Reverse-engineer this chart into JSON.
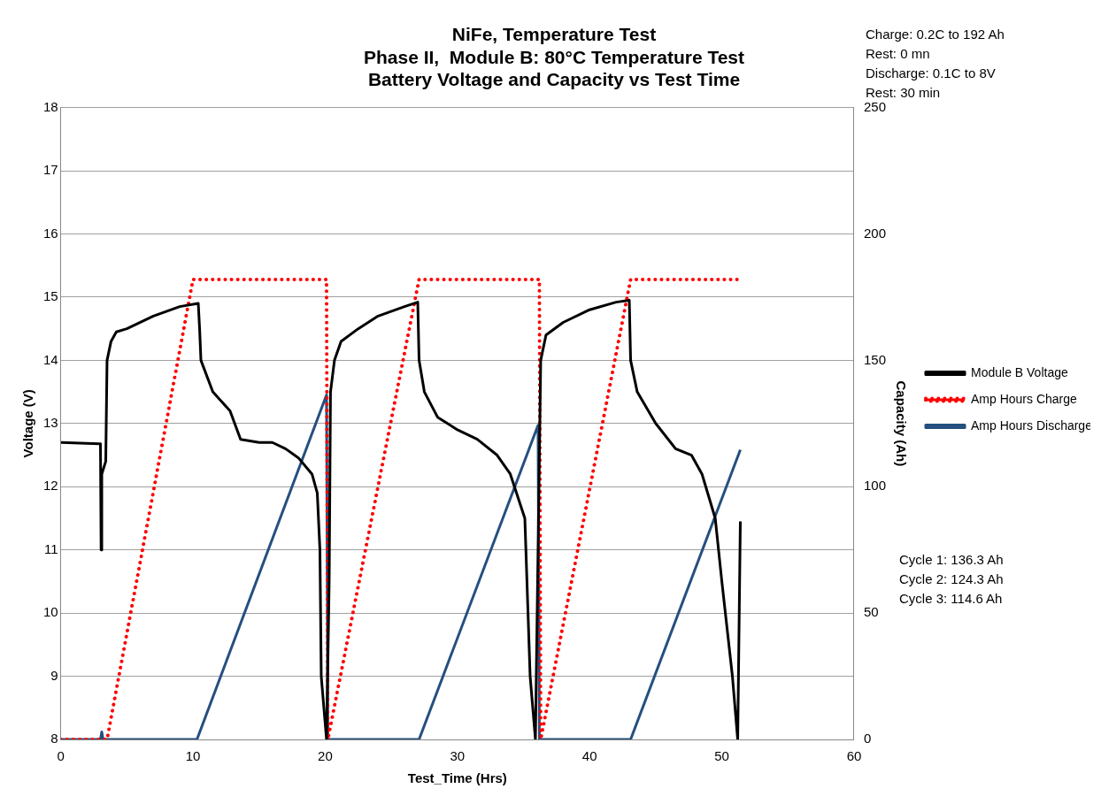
{
  "chart_data": {
    "type": "line",
    "title": "NiFe, Temperature Test\nPhase II,  Module B: 80°C Temperature Test\nBattery Voltage and Capacity vs Test Time",
    "xlabel": "Test_Time (Hrs)",
    "ylabel": "Voltage (V)",
    "y2label": "Capacity (Ah)",
    "annotations": [
      "Charge:  0.2C to 192 Ah\nRest:  0 mn\nDischarge:  0.1C to 8V\nRest:  30 min",
      "Cycle 1:  136.3 Ah\nCycle 2:  124.3 Ah\nCycle 3:  114.6 Ah"
    ],
    "xlim": [
      0,
      60
    ],
    "xticks": [
      0,
      10,
      20,
      30,
      40,
      50,
      60
    ],
    "ylim": [
      8,
      18
    ],
    "yticks": [
      8,
      9,
      10,
      11,
      12,
      13,
      14,
      15,
      16,
      17,
      18
    ],
    "y2lim": [
      0,
      250
    ],
    "y2ticks": [
      0,
      50,
      100,
      150,
      200,
      250
    ],
    "grid": "y",
    "legend": "right",
    "marker": "none",
    "series": [
      {
        "name": "Module B Voltage",
        "color": "#000000",
        "line_style": "solid",
        "x": [
          0,
          2.9,
          3.0,
          3.05,
          3.1,
          3.4,
          3.5,
          3.8,
          4.2,
          5,
          7,
          9,
          10.4,
          10.5,
          10.6,
          11.5,
          12.8,
          13.6,
          15,
          16,
          17,
          18,
          19,
          19.4,
          19.6,
          19.7,
          20.1,
          20.3,
          20.4,
          20.7,
          21.2,
          22.5,
          24,
          26,
          27.0,
          27.1,
          27.5,
          28.5,
          30,
          31.5,
          33,
          34,
          35.1,
          35.5,
          35.9,
          36.3,
          36.7,
          38,
          40,
          42,
          43.0,
          43.1,
          43.6,
          45,
          46.5,
          47.7,
          48.5,
          49.5,
          50.0,
          50.8,
          51.2,
          51.4
        ],
        "values": [
          12.7,
          12.68,
          12.68,
          11.0,
          12.2,
          12.4,
          14.0,
          14.3,
          14.45,
          14.5,
          14.7,
          14.85,
          14.9,
          14.5,
          14.0,
          13.5,
          13.2,
          12.75,
          12.7,
          12.7,
          12.6,
          12.45,
          12.2,
          11.9,
          11.0,
          9.0,
          8.0,
          10.5,
          13.5,
          14.0,
          14.3,
          14.5,
          14.7,
          14.85,
          14.92,
          14.0,
          13.5,
          13.1,
          12.9,
          12.75,
          12.5,
          12.2,
          11.5,
          9.0,
          8.0,
          14.0,
          14.4,
          14.6,
          14.8,
          14.92,
          14.95,
          14.0,
          13.5,
          13.0,
          12.6,
          12.5,
          12.2,
          11.5,
          10.5,
          9.0,
          8.0,
          11.45
        ]
      },
      {
        "name": "Amp Hours Charge",
        "color": "#ff0000",
        "line_style": "dotted",
        "axis": "y2",
        "x": [
          0,
          3.5,
          10.0,
          20.1,
          20.2,
          27.1,
          36.2,
          36.3,
          43.1,
          51.3
        ],
        "values": [
          0,
          0,
          182,
          182,
          0,
          182,
          182,
          0,
          182,
          182
        ]
      },
      {
        "name": "Amp Hours Discharge",
        "color": "#254f7f",
        "line_style": "solid",
        "axis": "y2",
        "x": [
          0,
          3.0,
          3.1,
          3.2,
          10.3,
          20.1,
          20.2,
          27.1,
          36.1,
          36.2,
          43.1,
          51.4
        ],
        "values": [
          0,
          0,
          3,
          0,
          0,
          136.3,
          0,
          0,
          124.3,
          0,
          0,
          114.6
        ]
      }
    ]
  }
}
